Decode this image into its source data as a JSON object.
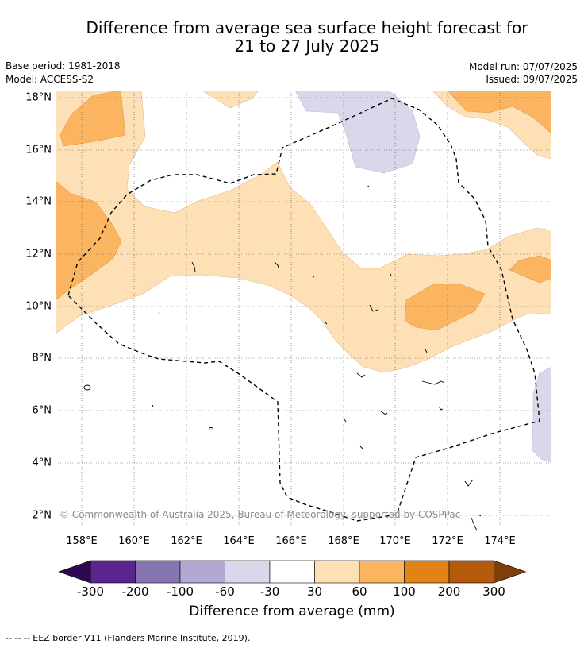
{
  "title": {
    "line1": "Difference from average sea surface height forecast for",
    "line2": "21 to 27 July 2025"
  },
  "meta": {
    "base_period": "Base period: 1981-2018",
    "model": "Model: ACCESS-S2",
    "model_run": "Model run: 07/07/2025",
    "issued": "Issued: 09/07/2025"
  },
  "map": {
    "lon_range": [
      157,
      176
    ],
    "lat_range": [
      1.5,
      18.3
    ],
    "lon_ticks": [
      "158°E",
      "160°E",
      "162°E",
      "164°E",
      "166°E",
      "168°E",
      "170°E",
      "172°E",
      "174°E"
    ],
    "lat_ticks": [
      "18°N",
      "16°N",
      "14°N",
      "12°N",
      "10°N",
      "8°N",
      "6°N",
      "4°N",
      "2°N"
    ],
    "gridlines": "dotted",
    "copyright": "© Commonwealth of Australia 2025, Bureau of Meteorology, supported by COSPPac"
  },
  "colorbar": {
    "levels": [
      "-300",
      "-200",
      "-100",
      "-60",
      "-30",
      "30",
      "60",
      "100",
      "200",
      "300"
    ],
    "colors": [
      "#5b2590",
      "#8575b2",
      "#b2a8d3",
      "#d8d8ea",
      "#ffffff",
      "#fde0b5",
      "#fbb460",
      "#e28317",
      "#b55a0a"
    ],
    "under_color": "#2e0850",
    "over_color": "#7f3f0a",
    "label": "Difference from average (mm)"
  },
  "footer": "--  --  -- EEZ border V11 (Flanders Marine Institute, 2019)."
}
